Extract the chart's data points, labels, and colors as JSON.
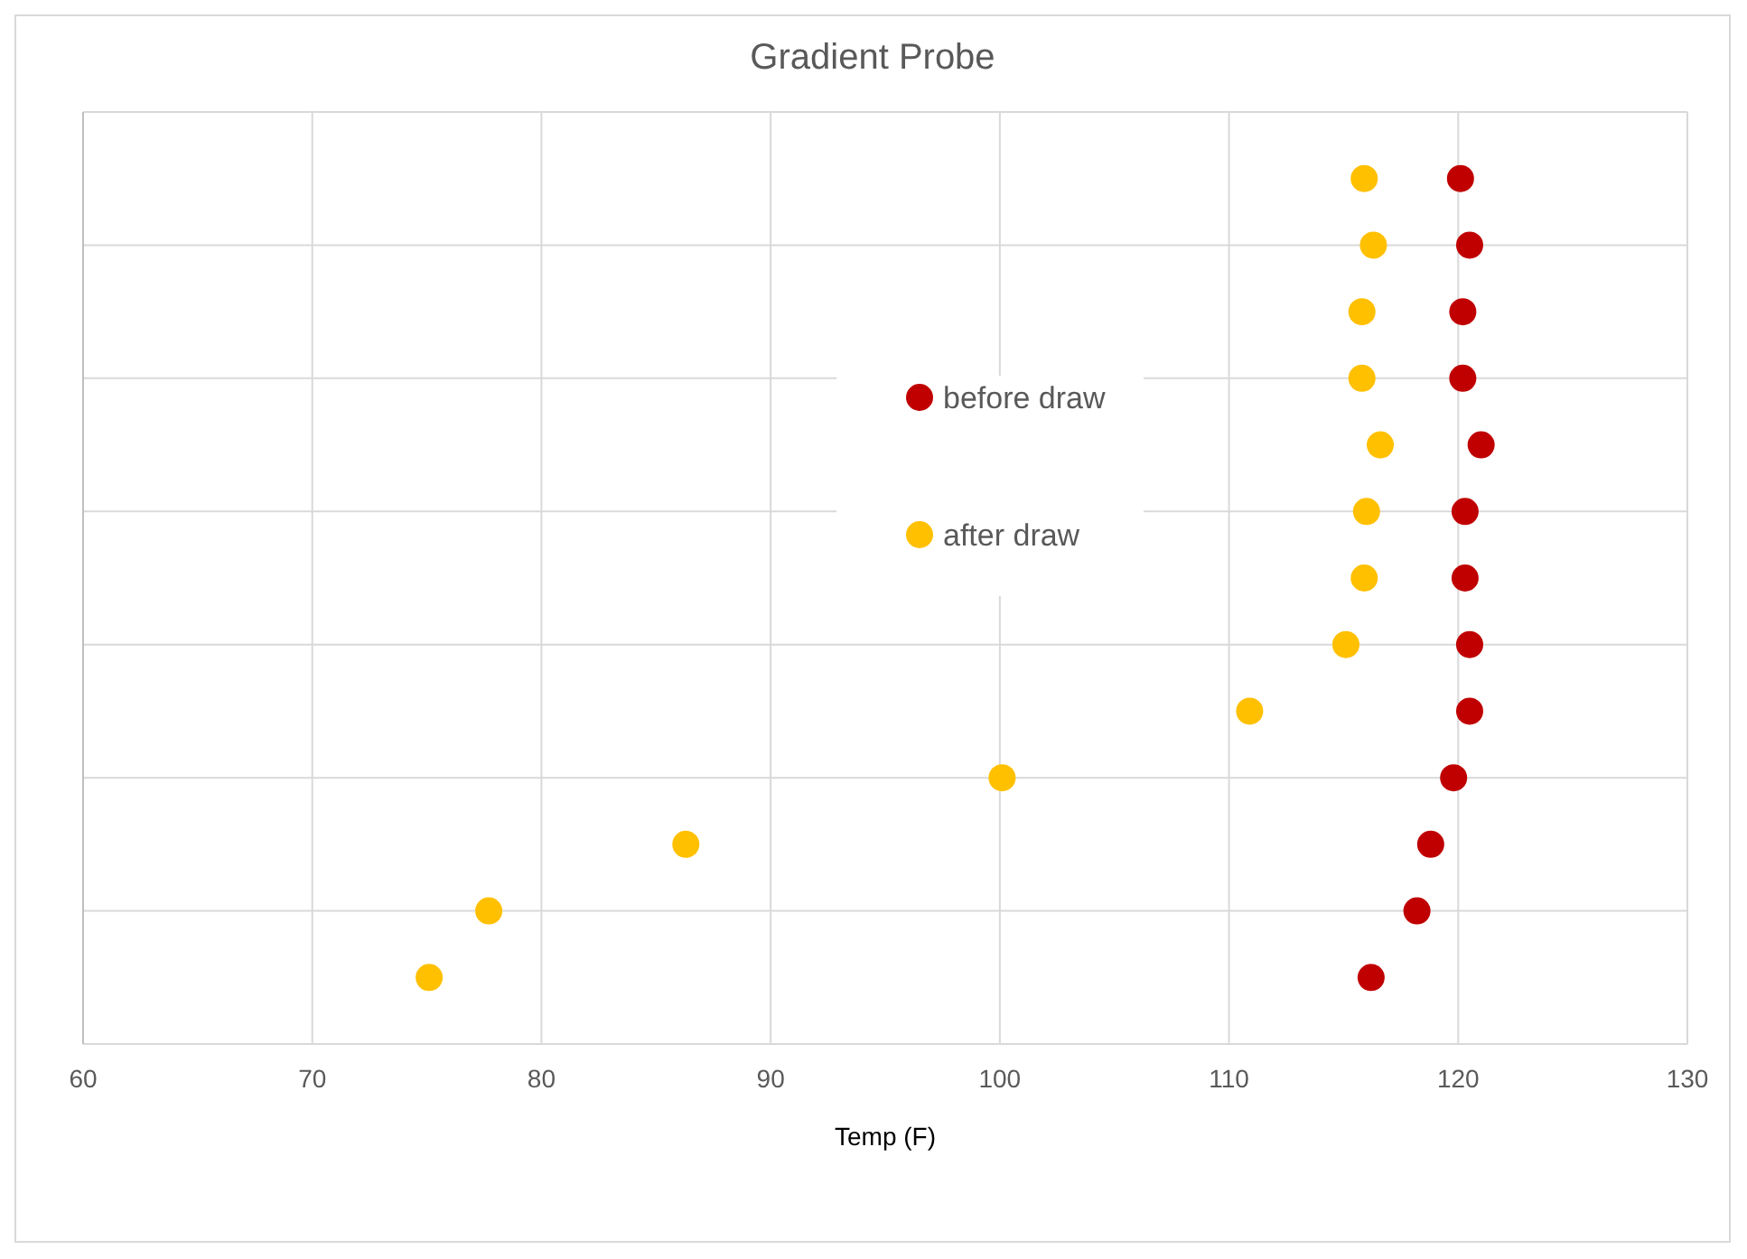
{
  "chart_data": {
    "type": "scatter",
    "orientation": "horizontal",
    "title": "Gradient Probe",
    "xlabel": "Temp (F)",
    "categories": [
      null,
      null,
      null,
      null,
      null,
      null,
      null,
      null,
      null,
      null,
      null,
      null,
      null
    ],
    "series": [
      {
        "name": "before draw",
        "color": "#c00000",
        "values": [
          120.1,
          120.5,
          120.2,
          120.2,
          121.0,
          120.3,
          120.3,
          120.5,
          120.5,
          119.8,
          118.8,
          118.2,
          116.2
        ]
      },
      {
        "name": "after draw",
        "color": "#ffc000",
        "values": [
          115.9,
          116.3,
          115.8,
          115.8,
          116.6,
          116.0,
          115.9,
          115.1,
          110.9,
          100.1,
          86.3,
          77.7,
          75.1
        ]
      }
    ],
    "xlim": [
      60,
      130
    ],
    "xticks": [
      60,
      70,
      80,
      90,
      100,
      110,
      120,
      130
    ],
    "grid": true,
    "legend": "center",
    "marker": "circle",
    "tick_labels": "x"
  }
}
